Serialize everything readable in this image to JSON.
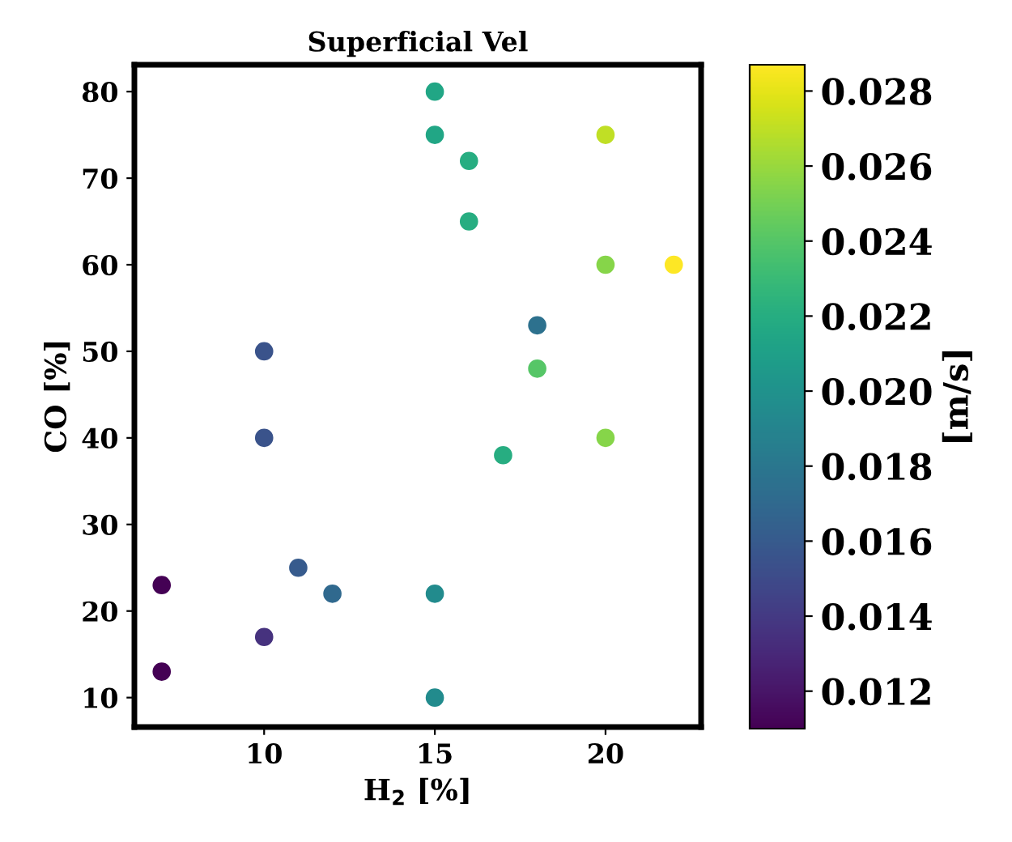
{
  "chart_data": {
    "type": "scatter",
    "title": "Superficial Vel",
    "xlabel": "H$_{2}$ [%]",
    "ylabel": "CO [%]",
    "clabel": "[m/s]",
    "x": [
      15,
      15,
      16,
      16,
      20,
      20,
      22,
      18,
      10,
      18,
      10,
      20,
      17,
      11,
      12,
      15,
      7,
      10,
      7,
      15
    ],
    "values": [
      80,
      75,
      72,
      65,
      75,
      60,
      60,
      53,
      50,
      48,
      40,
      40,
      38,
      25,
      22,
      22,
      23,
      17,
      13,
      10
    ],
    "cvalues": [
      0.0215,
      0.0215,
      0.022,
      0.022,
      0.027,
      0.0255,
      0.0287,
      0.0175,
      0.0155,
      0.024,
      0.0155,
      0.0255,
      0.022,
      0.016,
      0.017,
      0.0195,
      0.011,
      0.0135,
      0.011,
      0.0195
    ],
    "clim": [
      0.011,
      0.0287
    ],
    "cticks": [
      0.012,
      0.014,
      0.016,
      0.018,
      {
        "value": 0.02,
        "label": "0.020"
      },
      0.022,
      0.024,
      0.026,
      0.028
    ],
    "xlim": [
      6.2,
      22.8
    ],
    "xticks": [
      10,
      15,
      20
    ],
    "ylim": [
      6.6,
      83.1
    ],
    "yticks": [
      10,
      20,
      30,
      40,
      50,
      60,
      70,
      80
    ],
    "grid": false,
    "marker": "circle"
  }
}
